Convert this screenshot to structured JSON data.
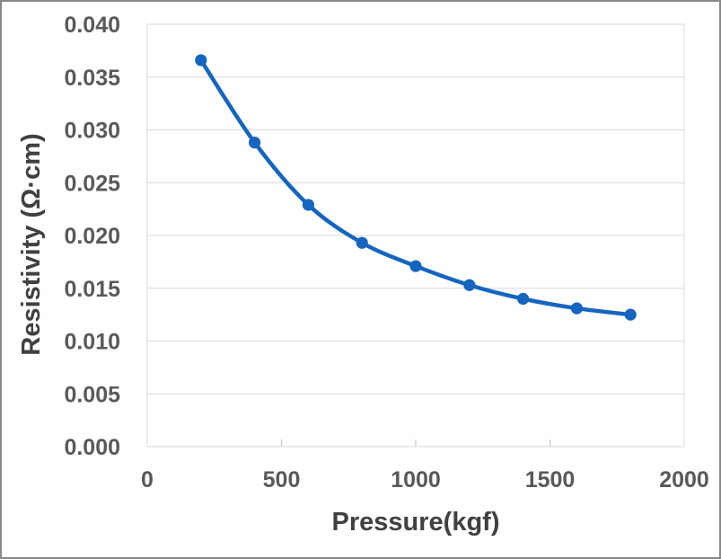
{
  "chart_data": {
    "type": "line",
    "title": "",
    "xlabel": "Pressure(kgf)",
    "ylabel": "Resistivity (Ω·㎝)",
    "x": [
      200,
      400,
      600,
      800,
      1000,
      1200,
      1400,
      1600,
      1800
    ],
    "series": [
      {
        "name": "Resistivity",
        "values": [
          0.0366,
          0.0288,
          0.0229,
          0.0193,
          0.0171,
          0.0153,
          0.014,
          0.0131,
          0.0125
        ]
      }
    ],
    "xlim": [
      0,
      2000
    ],
    "ylim": [
      0,
      0.04
    ],
    "x_ticks": [
      "0",
      "500",
      "1000",
      "1500",
      "2000"
    ],
    "y_ticks": [
      "0.000",
      "0.005",
      "0.010",
      "0.015",
      "0.020",
      "0.025",
      "0.030",
      "0.035",
      "0.040"
    ],
    "grid": "horizontal-only",
    "legend": "none",
    "marker": "circle",
    "line_smooth": true
  },
  "colors": {
    "series_line": "#1565c0",
    "marker_fill": "#1565c0",
    "gridline": "#d9d9d9",
    "plot_border": "#d9d9d9",
    "tick_mark": "#c6c6c6",
    "tick_label": "#595959",
    "axis_title": "#404040",
    "frame_border": "#898989",
    "background": "#ffffff"
  }
}
